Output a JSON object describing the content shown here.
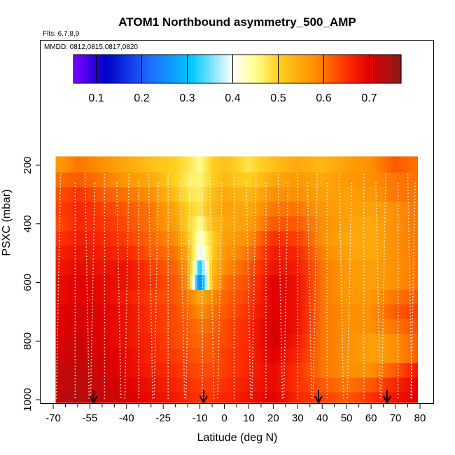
{
  "chart_data": {
    "type": "heatmap",
    "title": "ATOM1 Northbound asymmetry_500_AMP",
    "flights_note": "Flts: 6,7,8,9",
    "dates_note": "MMDD: 0812,0815,0817,0820",
    "xlabel": "Latitude (deg N)",
    "ylabel": "PSXC (mbar)",
    "xlim": [
      -70,
      82
    ],
    "ylim": [
      1010,
      160
    ],
    "x_ticks": [
      -70,
      -55,
      -40,
      -25,
      -10,
      0,
      10,
      20,
      30,
      40,
      50,
      60,
      70,
      80
    ],
    "x_tick_labels": [
      "-70",
      "-55",
      "-40",
      "-25",
      "-10",
      "0",
      "10",
      "20",
      "30",
      "40",
      "50",
      "60",
      "70",
      "80"
    ],
    "x_minor_ticks": [
      -65,
      -60,
      -50,
      -45,
      -35,
      -30,
      -20,
      -15,
      -5,
      5,
      15,
      25,
      35,
      45,
      55,
      65,
      75
    ],
    "y_ticks": [
      200,
      400,
      600,
      800,
      1000
    ],
    "y_tick_labels": [
      "200",
      "400",
      "600",
      "800",
      "1000"
    ],
    "colorbar": {
      "range": [
        0.05,
        0.77
      ],
      "ticks": [
        0.1,
        0.2,
        0.3,
        0.4,
        0.5,
        0.6,
        0.7
      ],
      "tick_labels": [
        "0.1",
        "0.2",
        "0.3",
        "0.4",
        "0.5",
        "0.6",
        "0.7"
      ],
      "colors": [
        "#7f00ff",
        "#0000c8",
        "#1e6eff",
        "#00c8ff",
        "#ffffff",
        "#ffff90",
        "#ffd020",
        "#ff9000",
        "#ff3000",
        "#e00000",
        "#8b1a1a"
      ],
      "stops": [
        0.05,
        0.12,
        0.22,
        0.31,
        0.4,
        0.45,
        0.5,
        0.58,
        0.65,
        0.7,
        0.77
      ]
    },
    "pressure_levels": [
      200,
      250,
      300,
      350,
      400,
      450,
      500,
      550,
      600,
      650,
      700,
      750,
      800,
      850,
      900,
      950,
      1000
    ],
    "latitude_nodes": [
      -70,
      -60,
      -50,
      -40,
      -30,
      -20,
      -15,
      -10,
      -5,
      0,
      10,
      20,
      30,
      40,
      50,
      60,
      70,
      80
    ],
    "value_nodes": [
      [
        0.56,
        0.6,
        0.58,
        0.55,
        0.52,
        0.5,
        0.48,
        0.45,
        0.5,
        0.52,
        0.48,
        0.52,
        0.55,
        0.53,
        0.56,
        0.58,
        0.62,
        0.6
      ],
      [
        0.6,
        0.62,
        0.6,
        0.57,
        0.55,
        0.5,
        0.47,
        0.46,
        0.5,
        0.53,
        0.5,
        0.55,
        0.57,
        0.55,
        0.57,
        0.58,
        0.6,
        0.6
      ],
      [
        0.62,
        0.65,
        0.62,
        0.6,
        0.58,
        0.52,
        0.48,
        0.47,
        0.52,
        0.55,
        0.53,
        0.58,
        0.58,
        0.56,
        0.56,
        0.57,
        0.6,
        0.6
      ],
      [
        0.63,
        0.66,
        0.64,
        0.62,
        0.6,
        0.55,
        0.5,
        0.48,
        0.53,
        0.56,
        0.55,
        0.6,
        0.6,
        0.57,
        0.56,
        0.56,
        0.58,
        0.6
      ],
      [
        0.62,
        0.66,
        0.65,
        0.63,
        0.6,
        0.56,
        0.5,
        0.45,
        0.52,
        0.55,
        0.56,
        0.62,
        0.62,
        0.58,
        0.56,
        0.55,
        0.58,
        0.6
      ],
      [
        0.64,
        0.67,
        0.66,
        0.64,
        0.61,
        0.58,
        0.52,
        0.42,
        0.5,
        0.56,
        0.58,
        0.65,
        0.64,
        0.58,
        0.55,
        0.55,
        0.58,
        0.6
      ],
      [
        0.66,
        0.68,
        0.67,
        0.66,
        0.62,
        0.6,
        0.55,
        0.38,
        0.5,
        0.57,
        0.6,
        0.67,
        0.66,
        0.59,
        0.56,
        0.55,
        0.58,
        0.6
      ],
      [
        0.67,
        0.69,
        0.68,
        0.68,
        0.64,
        0.61,
        0.57,
        0.3,
        0.52,
        0.58,
        0.62,
        0.68,
        0.67,
        0.6,
        0.57,
        0.56,
        0.58,
        0.6
      ],
      [
        0.68,
        0.7,
        0.69,
        0.68,
        0.65,
        0.62,
        0.58,
        0.22,
        0.53,
        0.6,
        0.63,
        0.7,
        0.68,
        0.6,
        0.57,
        0.56,
        0.58,
        0.6
      ],
      [
        0.68,
        0.7,
        0.69,
        0.67,
        0.64,
        0.62,
        0.6,
        0.55,
        0.58,
        0.61,
        0.64,
        0.7,
        0.68,
        0.6,
        0.57,
        0.57,
        0.6,
        0.62
      ],
      [
        0.69,
        0.71,
        0.7,
        0.68,
        0.65,
        0.63,
        0.61,
        0.58,
        0.6,
        0.62,
        0.65,
        0.7,
        0.68,
        0.6,
        0.58,
        0.58,
        0.62,
        0.64
      ],
      [
        0.7,
        0.71,
        0.7,
        0.68,
        0.65,
        0.63,
        0.62,
        0.6,
        0.61,
        0.63,
        0.66,
        0.71,
        0.68,
        0.6,
        0.58,
        0.58,
        0.6,
        0.63
      ],
      [
        0.7,
        0.72,
        0.7,
        0.68,
        0.66,
        0.63,
        0.62,
        0.61,
        0.62,
        0.63,
        0.66,
        0.71,
        0.67,
        0.6,
        0.58,
        0.56,
        0.58,
        0.62
      ],
      [
        0.71,
        0.72,
        0.71,
        0.69,
        0.66,
        0.64,
        0.63,
        0.62,
        0.62,
        0.64,
        0.66,
        0.7,
        0.66,
        0.6,
        0.58,
        0.56,
        0.58,
        0.62
      ],
      [
        0.72,
        0.73,
        0.71,
        0.69,
        0.67,
        0.65,
        0.64,
        0.63,
        0.63,
        0.64,
        0.66,
        0.69,
        0.65,
        0.6,
        0.58,
        0.58,
        0.62,
        0.68
      ],
      [
        0.72,
        0.73,
        0.72,
        0.7,
        0.68,
        0.66,
        0.65,
        0.64,
        0.64,
        0.65,
        0.67,
        0.69,
        0.65,
        0.62,
        0.6,
        0.62,
        0.66,
        0.7
      ],
      [
        0.73,
        0.74,
        0.72,
        0.71,
        0.69,
        0.67,
        0.66,
        0.65,
        0.65,
        0.66,
        0.68,
        0.7,
        0.66,
        0.64,
        0.62,
        0.65,
        0.68,
        0.7
      ]
    ],
    "profile_latitudes": [
      -67,
      -61,
      -57,
      -53,
      -49,
      -44,
      -39,
      -35,
      -31,
      -27,
      -23,
      -18,
      -14,
      -9,
      -6,
      -1,
      4,
      9,
      13,
      17,
      22,
      26,
      30,
      34,
      38,
      42,
      47,
      52,
      57,
      62,
      66,
      71,
      75,
      78
    ],
    "arrow_latitudes": [
      -53.5,
      -8.5,
      38.5,
      66.5
    ]
  }
}
